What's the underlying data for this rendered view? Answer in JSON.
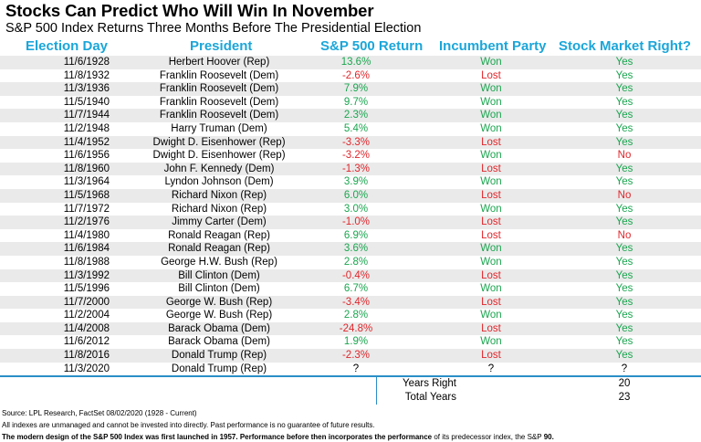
{
  "title": "Stocks Can Predict Who Will Win In November",
  "subtitle": "S&P 500 Index Returns Three Months Before The Presidential Election",
  "colors": {
    "header": "#1ba6d9",
    "positive": "#1aa64f",
    "negative": "#e0262b",
    "row_shade": "#eaeaea",
    "rule": "#2a8fc7"
  },
  "headers": {
    "election_day": "Election Day",
    "president": "President",
    "return": "S&P 500 Return",
    "incumbent": "Incumbent Party",
    "market_right": "Stock Market Right?"
  },
  "rows": [
    {
      "date": "11/6/1928",
      "president": "Herbert Hoover (Rep)",
      "ret": "13.6%",
      "party": "Won",
      "right": "Yes"
    },
    {
      "date": "11/8/1932",
      "president": "Franklin Roosevelt (Dem)",
      "ret": "-2.6%",
      "party": "Lost",
      "right": "Yes"
    },
    {
      "date": "11/3/1936",
      "president": "Franklin Roosevelt (Dem)",
      "ret": "7.9%",
      "party": "Won",
      "right": "Yes"
    },
    {
      "date": "11/5/1940",
      "president": "Franklin Roosevelt (Dem)",
      "ret": "9.7%",
      "party": "Won",
      "right": "Yes"
    },
    {
      "date": "11/7/1944",
      "president": "Franklin Roosevelt (Dem)",
      "ret": "2.3%",
      "party": "Won",
      "right": "Yes"
    },
    {
      "date": "11/2/1948",
      "president": "Harry Truman (Dem)",
      "ret": "5.4%",
      "party": "Won",
      "right": "Yes"
    },
    {
      "date": "11/4/1952",
      "president": "Dwight D. Eisenhower (Rep)",
      "ret": "-3.3%",
      "party": "Lost",
      "right": "Yes"
    },
    {
      "date": "11/6/1956",
      "president": "Dwight D. Eisenhower (Rep)",
      "ret": "-3.2%",
      "party": "Won",
      "right": "No"
    },
    {
      "date": "11/8/1960",
      "president": "John F. Kennedy (Dem)",
      "ret": "-1.3%",
      "party": "Lost",
      "right": "Yes"
    },
    {
      "date": "11/3/1964",
      "president": "Lyndon Johnson (Dem)",
      "ret": "3.9%",
      "party": "Won",
      "right": "Yes"
    },
    {
      "date": "11/5/1968",
      "president": "Richard Nixon (Rep)",
      "ret": "6.0%",
      "party": "Lost",
      "right": "No"
    },
    {
      "date": "11/7/1972",
      "president": "Richard Nixon (Rep)",
      "ret": "3.0%",
      "party": "Won",
      "right": "Yes"
    },
    {
      "date": "11/2/1976",
      "president": "Jimmy Carter (Dem)",
      "ret": "-1.0%",
      "party": "Lost",
      "right": "Yes"
    },
    {
      "date": "11/4/1980",
      "president": "Ronald Reagan (Rep)",
      "ret": "6.9%",
      "party": "Lost",
      "right": "No"
    },
    {
      "date": "11/6/1984",
      "president": "Ronald Reagan (Rep)",
      "ret": "3.6%",
      "party": "Won",
      "right": "Yes"
    },
    {
      "date": "11/8/1988",
      "president": "George H.W. Bush (Rep)",
      "ret": "2.8%",
      "party": "Won",
      "right": "Yes"
    },
    {
      "date": "11/3/1992",
      "president": "Bill Clinton (Dem)",
      "ret": "-0.4%",
      "party": "Lost",
      "right": "Yes"
    },
    {
      "date": "11/5/1996",
      "president": "Bill Clinton (Dem)",
      "ret": "6.7%",
      "party": "Won",
      "right": "Yes"
    },
    {
      "date": "11/7/2000",
      "president": "George W. Bush (Rep)",
      "ret": "-3.4%",
      "party": "Lost",
      "right": "Yes"
    },
    {
      "date": "11/2/2004",
      "president": "George W. Bush (Rep)",
      "ret": "2.8%",
      "party": "Won",
      "right": "Yes"
    },
    {
      "date": "11/4/2008",
      "president": "Barack Obama (Dem)",
      "ret": "-24.8%",
      "party": "Lost",
      "right": "Yes"
    },
    {
      "date": "11/6/2012",
      "president": "Barack Obama (Dem)",
      "ret": "1.9%",
      "party": "Won",
      "right": "Yes"
    },
    {
      "date": "11/8/2016",
      "president": "Donald Trump (Rep)",
      "ret": "-2.3%",
      "party": "Lost",
      "right": "Yes"
    },
    {
      "date": "11/3/2020",
      "president": "Donald Trump (Rep)",
      "ret": "?",
      "party": "?",
      "right": "?"
    }
  ],
  "summary": {
    "years_right_label": "Years Right",
    "years_right_value": "20",
    "total_years_label": "Total Years",
    "total_years_value": "23"
  },
  "footnotes": {
    "source": "Source: LPL Research, FactSet 08/02/2020 (1928 - Current)",
    "disclaimer": "All indexes are unmanaged and cannot be invested into directly. Past performance is no guarantee of future results.",
    "note_bold": "The modern design of the S&P 500 Index was first launched in 1957. Performance before then incorporates the performance",
    "note_normal": " of its  predecessor index, the S&P ",
    "note_end": "90."
  }
}
